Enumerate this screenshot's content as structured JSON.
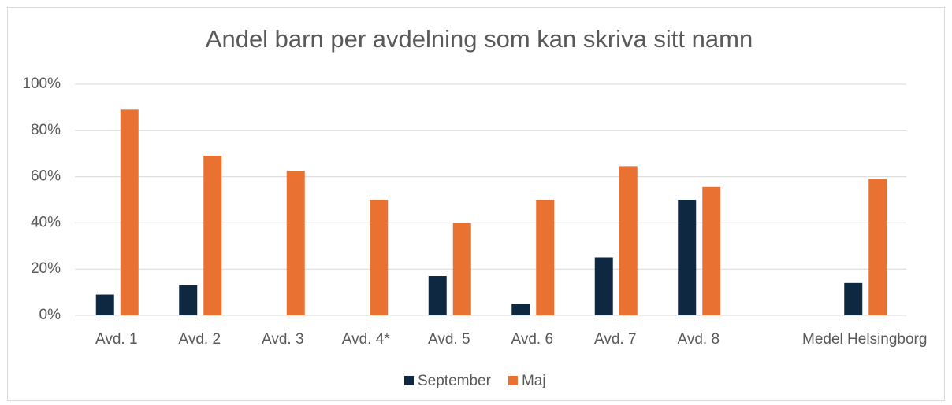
{
  "chart_data": {
    "type": "bar",
    "title": "Andel barn per avdelning som kan skriva sitt namn",
    "categories": [
      "Avd. 1",
      "Avd. 2",
      "Avd. 3",
      "Avd. 4*",
      "Avd. 5",
      "Avd. 6",
      "Avd. 7",
      "Avd. 8",
      null,
      "Medel Helsingborg"
    ],
    "series": [
      {
        "name": "September",
        "color": "#0e2841",
        "values": [
          9,
          13,
          0,
          0,
          17,
          5,
          25,
          50,
          null,
          14
        ]
      },
      {
        "name": "Maj",
        "color": "#e97132",
        "values": [
          89,
          69,
          62.5,
          50,
          40,
          50,
          64.5,
          55.5,
          null,
          59
        ]
      }
    ],
    "ylim": [
      0,
      100
    ],
    "yticks": [
      {
        "value": 0,
        "label": "0%"
      },
      {
        "value": 20,
        "label": "20%"
      },
      {
        "value": 40,
        "label": "40%"
      },
      {
        "value": 60,
        "label": "60%"
      },
      {
        "value": 80,
        "label": "80%"
      },
      {
        "value": 100,
        "label": "100%"
      }
    ],
    "grid": true,
    "legend": "bottom"
  }
}
